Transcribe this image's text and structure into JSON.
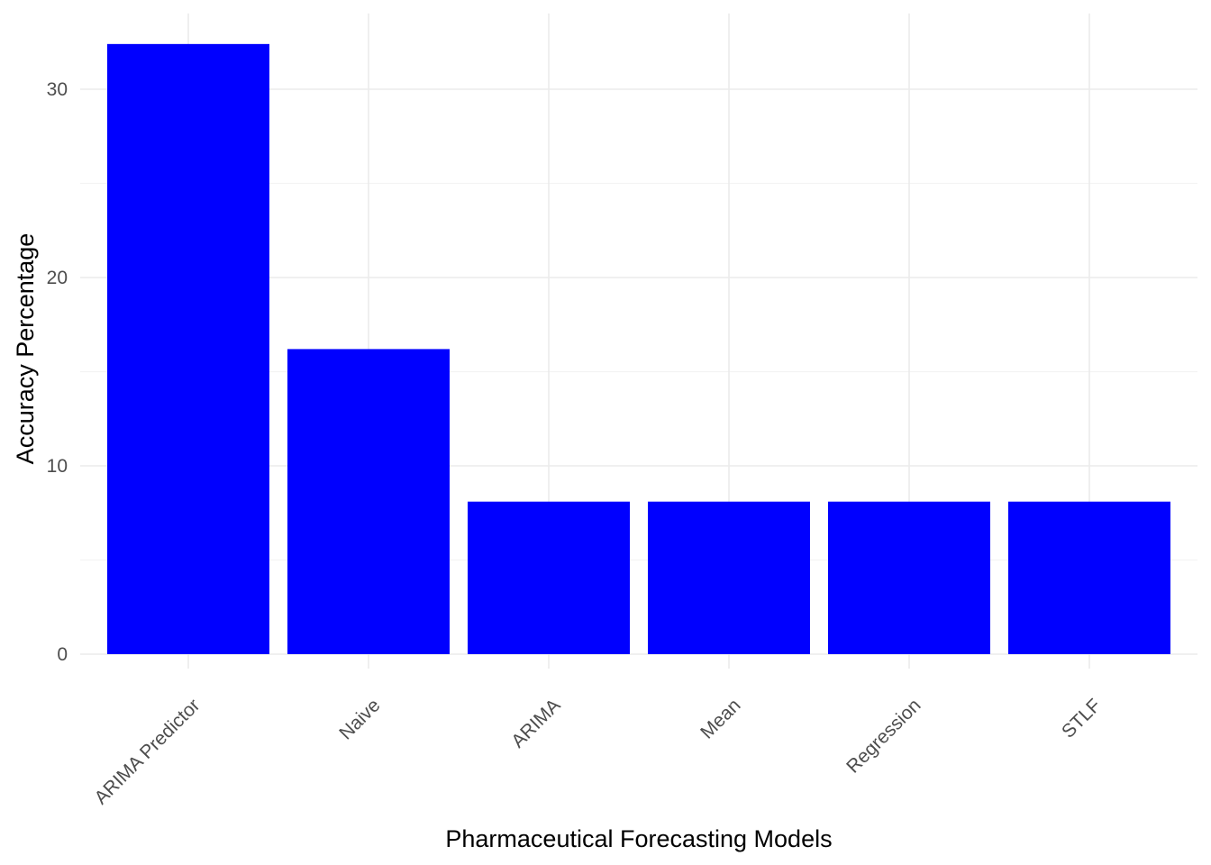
{
  "chart_data": {
    "type": "bar",
    "categories": [
      "ARIMA Predictor",
      "Naive",
      "ARIMA",
      "Mean",
      "Regression",
      "STLF"
    ],
    "values": [
      32.4,
      16.2,
      8.1,
      8.1,
      8.1,
      8.1
    ],
    "xlabel": "Pharmaceutical Forecasting Models",
    "ylabel": "Accuracy Percentage",
    "ylim": [
      0,
      34
    ],
    "yticks": [
      0,
      10,
      20,
      30
    ],
    "y_minor_ticks": [
      5,
      15,
      25
    ],
    "grid": true,
    "bar_color": "#0000ff",
    "grid_color": "#ebebeb",
    "tick_label_color": "#4d4d4d",
    "x_tick_rotation_deg": 45
  }
}
